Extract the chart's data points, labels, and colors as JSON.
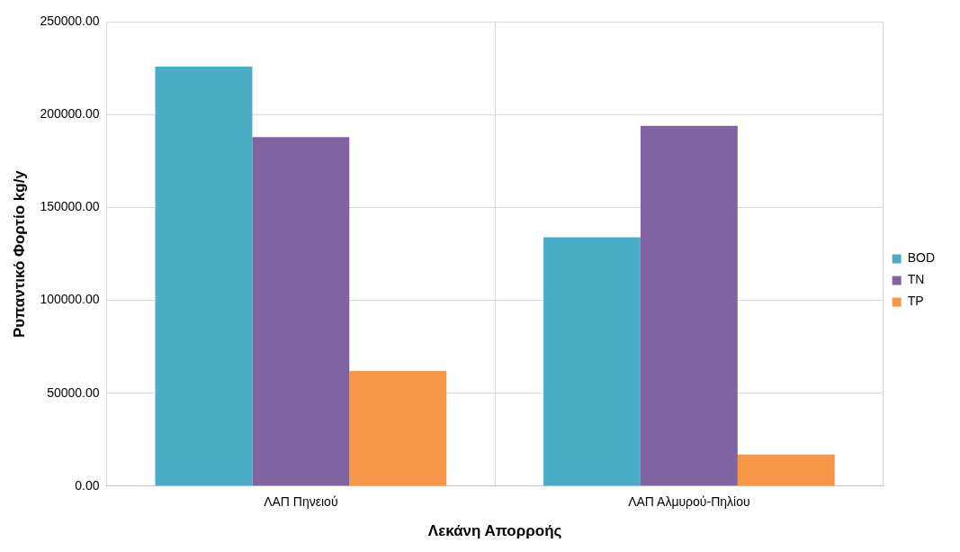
{
  "chart_data": {
    "type": "bar",
    "xlabel": "Λεκάνη Απορροής",
    "ylabel": "Ρυπαντικό Φορτίο kg/y",
    "categories": [
      "ΛΑΠ Πηνειού",
      "ΛΑΠ Αλμυρού-Πηλίου"
    ],
    "series": [
      {
        "name": "BOD",
        "color": "#4bacc6",
        "values": [
          226000,
          134000
        ]
      },
      {
        "name": "TN",
        "color": "#8064a2",
        "values": [
          188000,
          194000
        ]
      },
      {
        "name": "TP",
        "color": "#f79646",
        "values": [
          62000,
          17000
        ]
      }
    ],
    "ylim": [
      0,
      250000
    ],
    "yticks": [
      {
        "value": 0,
        "label": "0.00"
      },
      {
        "value": 50000,
        "label": "50000.00"
      },
      {
        "value": 100000,
        "label": "100000.00"
      },
      {
        "value": 150000,
        "label": "150000.00"
      },
      {
        "value": 200000,
        "label": "200000.00"
      },
      {
        "value": 250000,
        "label": "250000.00"
      }
    ],
    "grid": "y",
    "legend": "right"
  }
}
